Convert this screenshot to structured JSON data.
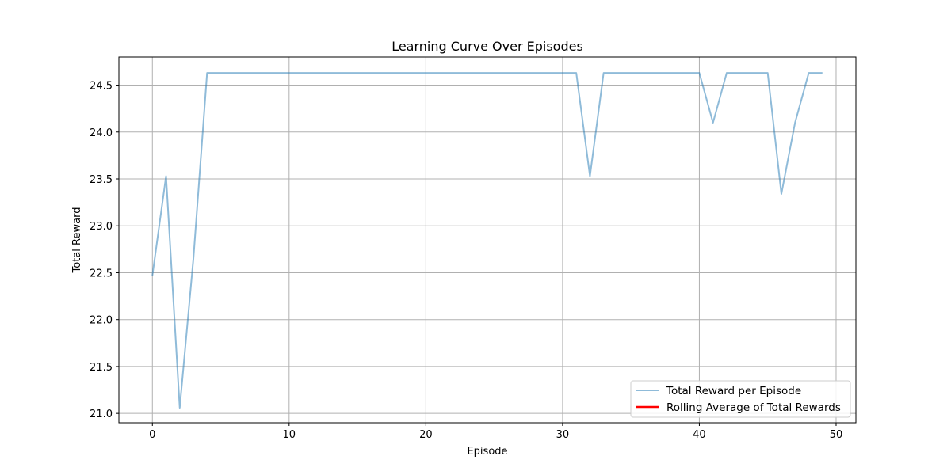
{
  "chart_data": {
    "type": "line",
    "title": "Learning Curve Over Episodes",
    "xlabel": "Episode",
    "ylabel": "Total Reward",
    "xlim": [
      -2.45,
      51.45
    ],
    "ylim": [
      20.9,
      24.8
    ],
    "xticks": [
      0,
      10,
      20,
      30,
      40,
      50
    ],
    "yticks": [
      21.0,
      21.5,
      22.0,
      22.5,
      23.0,
      23.5,
      24.0,
      24.5
    ],
    "grid": true,
    "legend_location": "lower right",
    "series": [
      {
        "name": "Total Reward per Episode",
        "color": "#1f77b4",
        "opacity": 0.5,
        "x": [
          0,
          1,
          2,
          3,
          4,
          5,
          6,
          7,
          8,
          9,
          10,
          11,
          12,
          13,
          14,
          15,
          16,
          17,
          18,
          19,
          20,
          21,
          22,
          23,
          24,
          25,
          26,
          27,
          28,
          29,
          30,
          31,
          32,
          33,
          34,
          35,
          36,
          37,
          38,
          39,
          40,
          41,
          42,
          43,
          44,
          45,
          46,
          47,
          48,
          49
        ],
        "values": [
          22.47,
          23.53,
          21.06,
          22.65,
          24.63,
          24.63,
          24.63,
          24.63,
          24.63,
          24.63,
          24.63,
          24.63,
          24.63,
          24.63,
          24.63,
          24.63,
          24.63,
          24.63,
          24.63,
          24.63,
          24.63,
          24.63,
          24.63,
          24.63,
          24.63,
          24.63,
          24.63,
          24.63,
          24.63,
          24.63,
          24.63,
          24.63,
          23.53,
          24.63,
          24.63,
          24.63,
          24.63,
          24.63,
          24.63,
          24.63,
          24.63,
          24.1,
          24.63,
          24.63,
          24.63,
          24.63,
          23.34,
          24.1,
          24.63,
          24.63
        ]
      },
      {
        "name": "Rolling Average of Total Rewards",
        "color": "#ff0000",
        "opacity": 1,
        "x": [],
        "values": []
      }
    ]
  }
}
